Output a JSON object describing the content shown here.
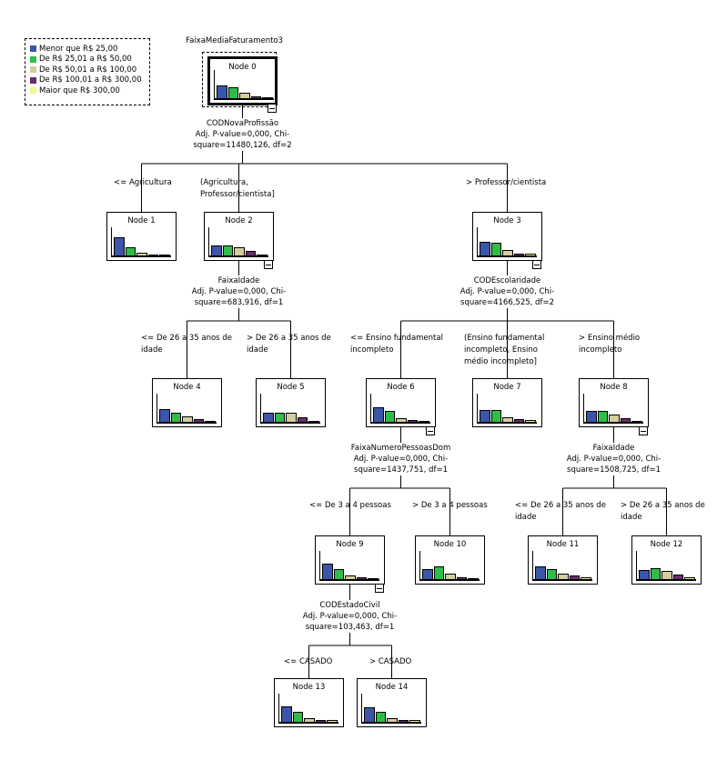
{
  "target_variable": "FaixaMediaFaturamento3",
  "legend": [
    {
      "label": "Menor que R$ 25,00",
      "color": "#3b55a8"
    },
    {
      "label": "De R$ 25,01 a R$ 50,00",
      "color": "#2fbd48"
    },
    {
      "label": "De R$ 50,01 a R$ 100,00",
      "color": "#d4cda0"
    },
    {
      "label": "De R$ 100,01 a R$ 300,00",
      "color": "#6a2e6a"
    },
    {
      "label": "Maior que R$ 300,00",
      "color": "#f6f58a"
    }
  ],
  "nodes": [
    {
      "id": "0",
      "title": "Node 0",
      "bars_pct": [
        44,
        38,
        21,
        7,
        4
      ],
      "expanded": true
    },
    {
      "id": "1",
      "title": "Node 1",
      "bars_pct": [
        66,
        30,
        9,
        4,
        4
      ]
    },
    {
      "id": "2",
      "title": "Node 2",
      "bars_pct": [
        36,
        34,
        28,
        15,
        4
      ],
      "expanded": true
    },
    {
      "id": "3",
      "title": "Node 3",
      "bars_pct": [
        48,
        46,
        21,
        8,
        5
      ],
      "expanded": true
    },
    {
      "id": "4",
      "title": "Node 4",
      "bars_pct": [
        45,
        33,
        20,
        9,
        4
      ]
    },
    {
      "id": "5",
      "title": "Node 5",
      "bars_pct": [
        33,
        33,
        32,
        16,
        4
      ]
    },
    {
      "id": "6",
      "title": "Node 6",
      "bars_pct": [
        52,
        40,
        14,
        5,
        3
      ],
      "expanded": true
    },
    {
      "id": "7",
      "title": "Node 7",
      "bars_pct": [
        43,
        43,
        17,
        11,
        6
      ]
    },
    {
      "id": "8",
      "title": "Node 8",
      "bars_pct": [
        39,
        39,
        25,
        13,
        4
      ],
      "expanded": true
    },
    {
      "id": "9",
      "title": "Node 9",
      "bars_pct": [
        55,
        36,
        12,
        5,
        4
      ],
      "expanded": true
    },
    {
      "id": "10",
      "title": "Node 10",
      "bars_pct": [
        35,
        44,
        20,
        8,
        4
      ]
    },
    {
      "id": "11",
      "title": "Node 11",
      "bars_pct": [
        44,
        37,
        19,
        12,
        5
      ]
    },
    {
      "id": "12",
      "title": "Node 12",
      "bars_pct": [
        33,
        39,
        30,
        16,
        6
      ]
    },
    {
      "id": "13",
      "title": "Node 13",
      "bars_pct": [
        55,
        34,
        14,
        5,
        5
      ]
    },
    {
      "id": "14",
      "title": "Node 14",
      "bars_pct": [
        52,
        35,
        14,
        5,
        5
      ]
    }
  ],
  "splits": [
    {
      "node": "0",
      "lines": [
        "CODNovaProfissão",
        "Adj. P-value=0,000, Chi-",
        "square=11480,126, df=2"
      ]
    },
    {
      "node": "2",
      "lines": [
        "FaixaIdade",
        "Adj. P-value=0,000, Chi-",
        "square=683,916, df=1"
      ]
    },
    {
      "node": "3",
      "lines": [
        "CODEscolaridade",
        "Adj. P-value=0,000, Chi-",
        "square=4166,525, df=2"
      ]
    },
    {
      "node": "6",
      "lines": [
        "FaixaNumeroPessoasDom",
        "Adj. P-value=0,000, Chi-",
        "square=1437,751, df=1"
      ]
    },
    {
      "node": "8",
      "lines": [
        "FaixaIdade",
        "Adj. P-value=0,000, Chi-",
        "square=1508,725, df=1"
      ]
    },
    {
      "node": "9",
      "lines": [
        "CODEstadoCivil",
        "Adj. P-value=0,000, Chi-",
        "square=103,463, df=1"
      ]
    }
  ],
  "edges": [
    {
      "to": "1",
      "lines": [
        "<= Agricultura"
      ]
    },
    {
      "to": "2",
      "lines": [
        "(Agricultura,",
        "Professor/cientista]"
      ]
    },
    {
      "to": "3",
      "lines": [
        "> Professor/cientista"
      ]
    },
    {
      "to": "4",
      "lines": [
        "<= De 26 a 35 anos de",
        "idade"
      ]
    },
    {
      "to": "5",
      "lines": [
        "> De 26 a 35 anos de",
        "idade"
      ]
    },
    {
      "to": "6",
      "lines": [
        "<= Ensino fundamental",
        "incompleto"
      ]
    },
    {
      "to": "7",
      "lines": [
        "(Ensino fundamental",
        "incompleto, Ensino",
        "médio incompleto]"
      ]
    },
    {
      "to": "8",
      "lines": [
        "> Ensino médio",
        "incompleto"
      ]
    },
    {
      "to": "9",
      "lines": [
        "<= De 3 a 4 pessoas"
      ]
    },
    {
      "to": "10",
      "lines": [
        "> De 3 a 4 pessoas"
      ]
    },
    {
      "to": "11",
      "lines": [
        "<= De 26 a 35 anos de",
        "idade"
      ]
    },
    {
      "to": "12",
      "lines": [
        "> De 26 a 35 anos de",
        "idade"
      ]
    },
    {
      "to": "13",
      "lines": [
        "<= CASADO"
      ]
    },
    {
      "to": "14",
      "lines": [
        "> CASADO"
      ]
    }
  ]
}
